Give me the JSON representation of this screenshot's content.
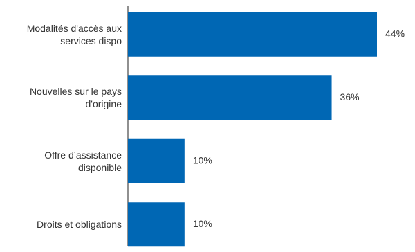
{
  "chart_data": {
    "type": "bar",
    "orientation": "horizontal",
    "categories": [
      "Modalités d'accès aux services dispo",
      "Nouvelles sur le pays d'origine",
      "Offre d’assistance disponible",
      "Droits et obligations"
    ],
    "values": [
      44,
      36,
      10,
      10
    ],
    "value_labels": [
      "44%",
      "36%",
      "10%",
      "10%"
    ],
    "color": "#0067b4"
  }
}
